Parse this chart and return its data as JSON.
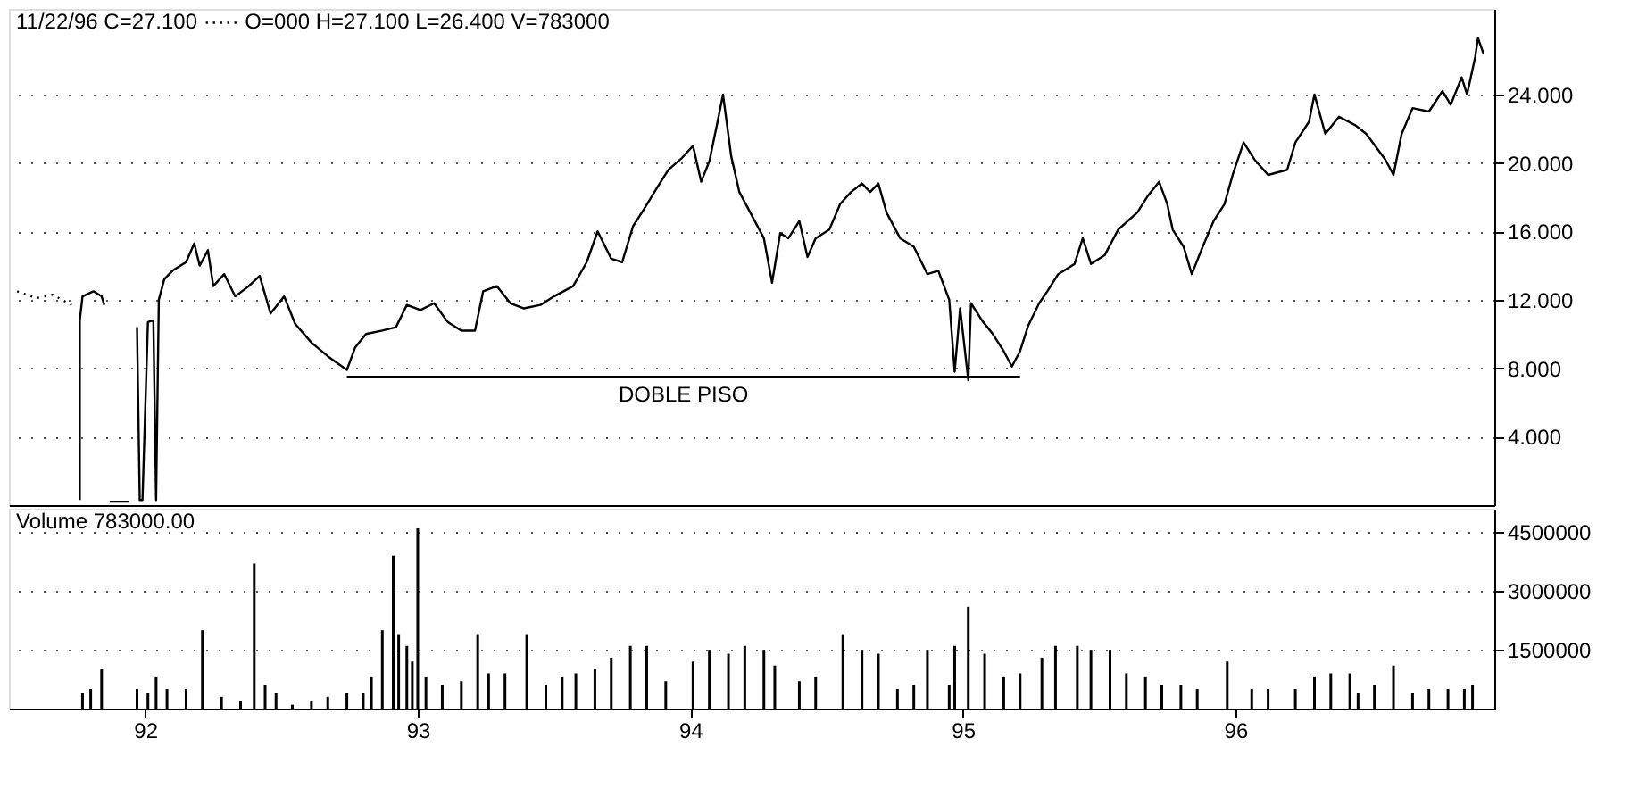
{
  "chart_data": [
    {
      "type": "line",
      "title": "11/22/96 C=27.100 ····· O=000 H=27.100 L=26.400 V=783000",
      "xlim": [
        91.5,
        96.95
      ],
      "ylim": [
        0,
        29
      ],
      "yticks": [
        {
          "value": 4,
          "label": "4.000"
        },
        {
          "value": 8,
          "label": "8.000"
        },
        {
          "value": 12,
          "label": "12.000"
        },
        {
          "value": 16,
          "label": "16.000"
        },
        {
          "value": 20,
          "label": "20.000"
        },
        {
          "value": 24,
          "label": "24.000"
        }
      ],
      "tick_labels": "y",
      "grid": "y",
      "series": [
        {
          "color": "#000000",
          "line_style": "dotted",
          "x": [
            91.53,
            91.6,
            91.66,
            91.73
          ],
          "values": [
            12.5,
            12.1,
            12.3,
            11.7
          ]
        },
        {
          "color": "#000000",
          "x": [
            91.76,
            91.76,
            91.77,
            91.81,
            91.84,
            91.85,
            91.86,
            91.87,
            91.94,
            91.95,
            91.97,
            91.98,
            91.99,
            92.01,
            92.03,
            92.04,
            92.05,
            92.07,
            92.1,
            92.15,
            92.18,
            92.2,
            92.23,
            92.25,
            92.29,
            92.33,
            92.38,
            92.42,
            92.46,
            92.51,
            92.55,
            92.61,
            92.67,
            92.74,
            92.77,
            92.81,
            92.87,
            92.92,
            92.96,
            93.01,
            93.06,
            93.11,
            93.16,
            93.21,
            93.24,
            93.29,
            93.34,
            93.39,
            93.45,
            93.5,
            93.57,
            93.62,
            93.66,
            93.71,
            93.75,
            93.79,
            93.83,
            93.88,
            93.92,
            93.97,
            94.01,
            94.04,
            94.07,
            94.1,
            94.12,
            94.15,
            94.18,
            94.22,
            94.27,
            94.3,
            94.33,
            94.36,
            94.4,
            94.43,
            94.46,
            94.51,
            94.55,
            94.59,
            94.63,
            94.66,
            94.69,
            94.72,
            94.77,
            94.82,
            94.87,
            94.91,
            94.95,
            94.97,
            94.99,
            95.02,
            95.03,
            95.07,
            95.11,
            95.15,
            95.18,
            95.21,
            95.24,
            95.28,
            95.31,
            95.35,
            95.41,
            95.44,
            95.47,
            95.52,
            95.57,
            95.64,
            95.68,
            95.72,
            95.75,
            95.77,
            95.81,
            95.84,
            95.88,
            95.92,
            95.96,
            95.99,
            96.03,
            96.07,
            96.12,
            96.19,
            96.22,
            96.27,
            96.29,
            96.33,
            96.38,
            96.44,
            96.48,
            96.55,
            96.58,
            96.61,
            96.65,
            96.71,
            96.76,
            96.79,
            96.83,
            96.85,
            96.88,
            96.89,
            96.91
          ],
          "values": [
            0.3,
            10.8,
            12.2,
            12.5,
            12.2,
            11.7,
            null,
            0.2,
            0.2,
            null,
            10.4,
            0.3,
            0.3,
            10.7,
            10.8,
            0.3,
            12.0,
            13.2,
            13.7,
            14.2,
            15.3,
            14.0,
            14.9,
            12.8,
            13.5,
            12.2,
            12.8,
            13.4,
            11.2,
            12.2,
            10.6,
            9.5,
            8.7,
            7.9,
            9.2,
            10.0,
            10.2,
            10.4,
            11.7,
            11.4,
            11.8,
            10.7,
            10.2,
            10.2,
            12.5,
            12.8,
            11.8,
            11.5,
            11.7,
            12.2,
            12.8,
            14.2,
            16.0,
            14.4,
            14.2,
            16.3,
            17.3,
            18.6,
            19.6,
            20.3,
            21.0,
            18.9,
            20.1,
            22.4,
            24.0,
            20.4,
            18.3,
            17.1,
            15.6,
            13.0,
            15.9,
            15.6,
            16.6,
            14.5,
            15.6,
            16.1,
            17.6,
            18.3,
            18.8,
            18.3,
            18.8,
            17.1,
            15.6,
            15.1,
            13.5,
            13.7,
            12.0,
            7.8,
            11.5,
            7.3,
            11.8,
            10.8,
            10.0,
            9.0,
            8.1,
            9.0,
            10.5,
            11.8,
            12.5,
            13.5,
            14.1,
            15.6,
            14.1,
            14.6,
            16.1,
            17.1,
            18.1,
            18.9,
            17.6,
            16.1,
            15.1,
            13.5,
            15.1,
            16.6,
            17.6,
            19.3,
            21.2,
            20.2,
            19.3,
            19.6,
            21.2,
            22.4,
            24.0,
            21.7,
            22.7,
            22.2,
            21.7,
            20.2,
            19.3,
            21.7,
            23.2,
            23.0,
            24.2,
            23.4,
            25.0,
            24.0,
            26.2,
            27.3,
            26.4
          ]
        },
        {
          "name": "DOBLE PISO",
          "color": "#000000",
          "x": [
            92.74,
            95.21
          ],
          "values": [
            7.5,
            7.5
          ]
        }
      ]
    },
    {
      "type": "bar",
      "title": "Volume 783000.00",
      "xlim": [
        91.5,
        96.95
      ],
      "xticks": [
        92,
        93,
        94,
        95,
        96
      ],
      "ylim": [
        0,
        5100000
      ],
      "yticks": [
        1500000,
        3000000,
        4500000
      ],
      "grid": "y",
      "series": [
        {
          "color": "#000000",
          "x": [
            91.77,
            91.8,
            91.84,
            91.97,
            92.01,
            92.04,
            92.08,
            92.15,
            92.21,
            92.28,
            92.35,
            92.4,
            92.44,
            92.48,
            92.54,
            92.61,
            92.67,
            92.74,
            92.8,
            92.83,
            92.87,
            92.91,
            92.93,
            92.96,
            92.98,
            93.0,
            93.03,
            93.09,
            93.16,
            93.22,
            93.26,
            93.32,
            93.4,
            93.47,
            93.53,
            93.58,
            93.65,
            93.71,
            93.78,
            93.84,
            93.91,
            94.01,
            94.07,
            94.14,
            94.2,
            94.27,
            94.31,
            94.4,
            94.46,
            94.56,
            94.63,
            94.69,
            94.76,
            94.82,
            94.87,
            94.95,
            94.97,
            95.02,
            95.08,
            95.15,
            95.21,
            95.29,
            95.34,
            95.42,
            95.47,
            95.54,
            95.6,
            95.67,
            95.73,
            95.8,
            95.86,
            95.97,
            96.06,
            96.12,
            96.22,
            96.29,
            96.35,
            96.42,
            96.45,
            96.51,
            96.58,
            96.65,
            96.71,
            96.78,
            96.84,
            96.87
          ],
          "values": [
            400000,
            500000,
            1000000,
            500000,
            400000,
            800000,
            500000,
            500000,
            2000000,
            300000,
            200000,
            3700000,
            600000,
            400000,
            100000,
            200000,
            300000,
            400000,
            400000,
            800000,
            2000000,
            3900000,
            1900000,
            1600000,
            1200000,
            4600000,
            800000,
            600000,
            700000,
            1900000,
            900000,
            900000,
            1900000,
            600000,
            800000,
            900000,
            1000000,
            1300000,
            1600000,
            1600000,
            700000,
            1200000,
            1500000,
            1400000,
            1600000,
            1500000,
            1100000,
            700000,
            800000,
            1900000,
            1500000,
            1400000,
            500000,
            600000,
            1500000,
            600000,
            1600000,
            2600000,
            1400000,
            800000,
            900000,
            1300000,
            1600000,
            1600000,
            1500000,
            1500000,
            900000,
            800000,
            600000,
            600000,
            500000,
            1200000,
            500000,
            500000,
            500000,
            800000,
            900000,
            900000,
            400000,
            600000,
            1100000,
            400000,
            500000,
            500000,
            500000,
            600000
          ]
        }
      ]
    }
  ]
}
